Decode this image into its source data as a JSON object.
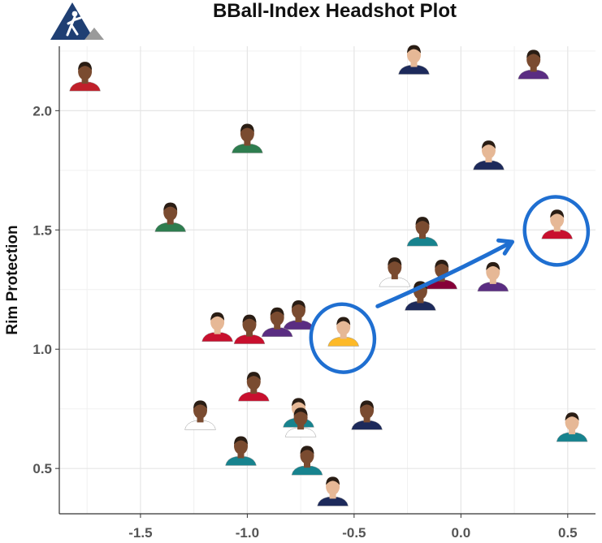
{
  "chart_data": {
    "type": "scatter",
    "title": "BBall-Index Headshot Plot",
    "xlabel": "",
    "ylabel": "Rim Protection",
    "xlim": [
      -1.88,
      0.63
    ],
    "ylim": [
      0.31,
      2.27
    ],
    "x_ticks": [
      -1.5,
      -1.0,
      -0.5,
      0.0,
      0.5
    ],
    "x_tick_labels": [
      "-1.5",
      "-1.0",
      "-0.5",
      "0.0",
      "0.5"
    ],
    "y_ticks": [
      0.5,
      1.0,
      1.5,
      2.0
    ],
    "y_tick_labels": [
      "0.5",
      "1.0",
      "1.5",
      "2.0"
    ],
    "grid": true,
    "marker": "player-headshot",
    "points": [
      {
        "x": -1.76,
        "y": 2.12,
        "jersey": "#c0202a"
      },
      {
        "x": -0.22,
        "y": 2.19,
        "jersey": "#1d2a5b"
      },
      {
        "x": 0.34,
        "y": 2.17,
        "jersey": "#5a2d82"
      },
      {
        "x": -1.0,
        "y": 1.86,
        "jersey": "#2e7d4f"
      },
      {
        "x": 0.13,
        "y": 1.79,
        "jersey": "#1d2a5b"
      },
      {
        "x": -1.36,
        "y": 1.53,
        "jersey": "#2e7d4f"
      },
      {
        "x": -0.18,
        "y": 1.47,
        "jersey": "#17838e"
      },
      {
        "x": 0.45,
        "y": 1.5,
        "jersey": "#c8102e"
      },
      {
        "x": -0.31,
        "y": 1.3,
        "jersey": "#ffffff"
      },
      {
        "x": -0.09,
        "y": 1.29,
        "jersey": "#860038"
      },
      {
        "x": 0.15,
        "y": 1.28,
        "jersey": "#5a2d82"
      },
      {
        "x": -0.19,
        "y": 1.2,
        "jersey": "#1d2a5b"
      },
      {
        "x": -0.76,
        "y": 1.12,
        "jersey": "#5a2d82"
      },
      {
        "x": -1.14,
        "y": 1.07,
        "jersey": "#c8102e"
      },
      {
        "x": -0.99,
        "y": 1.06,
        "jersey": "#c8102e"
      },
      {
        "x": -0.86,
        "y": 1.09,
        "jersey": "#5a2d82"
      },
      {
        "x": -0.55,
        "y": 1.05,
        "jersey": "#fdb927"
      },
      {
        "x": -0.97,
        "y": 0.82,
        "jersey": "#c8102e"
      },
      {
        "x": -1.22,
        "y": 0.7,
        "jersey": "#ffffff"
      },
      {
        "x": -0.76,
        "y": 0.71,
        "jersey": "#17838e"
      },
      {
        "x": -0.75,
        "y": 0.67,
        "jersey": "#ffffff"
      },
      {
        "x": -0.44,
        "y": 0.7,
        "jersey": "#1d2a5b"
      },
      {
        "x": 0.52,
        "y": 0.65,
        "jersey": "#17838e"
      },
      {
        "x": -1.03,
        "y": 0.55,
        "jersey": "#17838e"
      },
      {
        "x": -0.72,
        "y": 0.51,
        "jersey": "#17838e"
      },
      {
        "x": -0.6,
        "y": 0.38,
        "jersey": "#1d2a5b"
      }
    ],
    "annotations": [
      {
        "type": "circle",
        "target_x": -0.55,
        "target_y": 1.05,
        "color": "#1f6fd1"
      },
      {
        "type": "circle",
        "target_x": 0.45,
        "target_y": 1.5,
        "color": "#1f6fd1"
      },
      {
        "type": "arrow",
        "from": [
          -0.39,
          1.18
        ],
        "to": [
          0.24,
          1.45
        ],
        "color": "#1f6fd1"
      }
    ],
    "logo": {
      "colors": [
        "#1f3f73",
        "#9a9a9a",
        "#ffffff"
      ]
    },
    "colors": {
      "skin_light": "#e6b896",
      "skin_dark": "#7a4b30",
      "hair": "#2a1d14",
      "grid": "#e5e5e5",
      "tick_text": "#555555"
    }
  }
}
